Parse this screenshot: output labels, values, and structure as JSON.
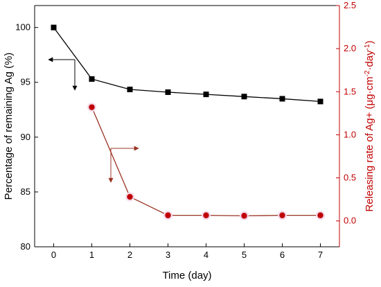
{
  "chart_data": {
    "type": "line",
    "xlabel": "Time (day)",
    "x_ticks": [
      0,
      1,
      2,
      3,
      4,
      5,
      6,
      7
    ],
    "xlim": [
      -0.5,
      7.5
    ],
    "y_left": {
      "label": "Percentage of remaining Ag (%)",
      "lim": [
        80,
        102
      ],
      "ticks": [
        80,
        85,
        90,
        95,
        100
      ]
    },
    "y_right": {
      "label_prefix": "Releasing rate of Ag+ (μg·cm",
      "label_sup1": "-2",
      "label_mid": "·day",
      "label_sup2": "-1",
      "label_suffix": ")",
      "lim": [
        -0.3,
        2.5
      ],
      "ticks": [
        "0.0",
        "0.5",
        "1.0",
        "1.5",
        "2.0",
        "2.5"
      ],
      "color": "#c00000"
    },
    "series": [
      {
        "axis": "left",
        "marker": "square",
        "color": "#000000",
        "x": [
          0,
          1,
          2,
          3,
          4,
          5,
          6,
          7
        ],
        "values": [
          100.0,
          95.3,
          94.35,
          94.1,
          93.9,
          93.7,
          93.5,
          93.25
        ]
      },
      {
        "axis": "right",
        "marker": "circle",
        "color": "#c00000",
        "line_color": "#993322",
        "x": [
          1,
          2,
          3,
          4,
          5,
          6,
          7
        ],
        "values": [
          1.32,
          0.28,
          0.065,
          0.065,
          0.06,
          0.065,
          0.065
        ]
      }
    ]
  }
}
